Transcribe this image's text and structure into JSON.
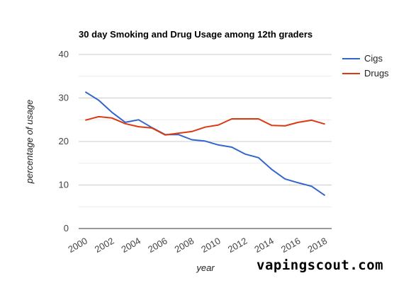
{
  "chart_data": {
    "type": "line",
    "title": "30 day Smoking and Drug Usage among 12th graders",
    "xlabel": "year",
    "ylabel": "percentage of usage",
    "x": [
      2000,
      2001,
      2002,
      2003,
      2004,
      2005,
      2006,
      2007,
      2008,
      2009,
      2010,
      2011,
      2012,
      2013,
      2014,
      2015,
      2016,
      2017,
      2018
    ],
    "x_ticks": [
      "2000",
      "2002",
      "2004",
      "2006",
      "2008",
      "2010",
      "2012",
      "2014",
      "2016",
      "2018"
    ],
    "y_ticks": [
      "0",
      "10",
      "20",
      "30",
      "40"
    ],
    "ylim": [
      0,
      40
    ],
    "xlim": [
      1999.5,
      2018.5
    ],
    "grid": true,
    "legend_position": "right",
    "series": [
      {
        "name": "Cigs",
        "color": "#3366cc",
        "values": [
          31.4,
          29.5,
          26.7,
          24.4,
          25.0,
          23.2,
          21.6,
          21.6,
          20.4,
          20.1,
          19.2,
          18.7,
          17.1,
          16.3,
          13.6,
          11.4,
          10.5,
          9.7,
          7.6
        ]
      },
      {
        "name": "Drugs",
        "color": "#dc3912",
        "values": [
          24.9,
          25.7,
          25.4,
          24.1,
          23.4,
          23.1,
          21.5,
          21.9,
          22.3,
          23.3,
          23.8,
          25.2,
          25.2,
          25.2,
          23.7,
          23.6,
          24.4,
          24.9,
          24.0
        ]
      }
    ]
  },
  "watermark": "vapingscout.com"
}
